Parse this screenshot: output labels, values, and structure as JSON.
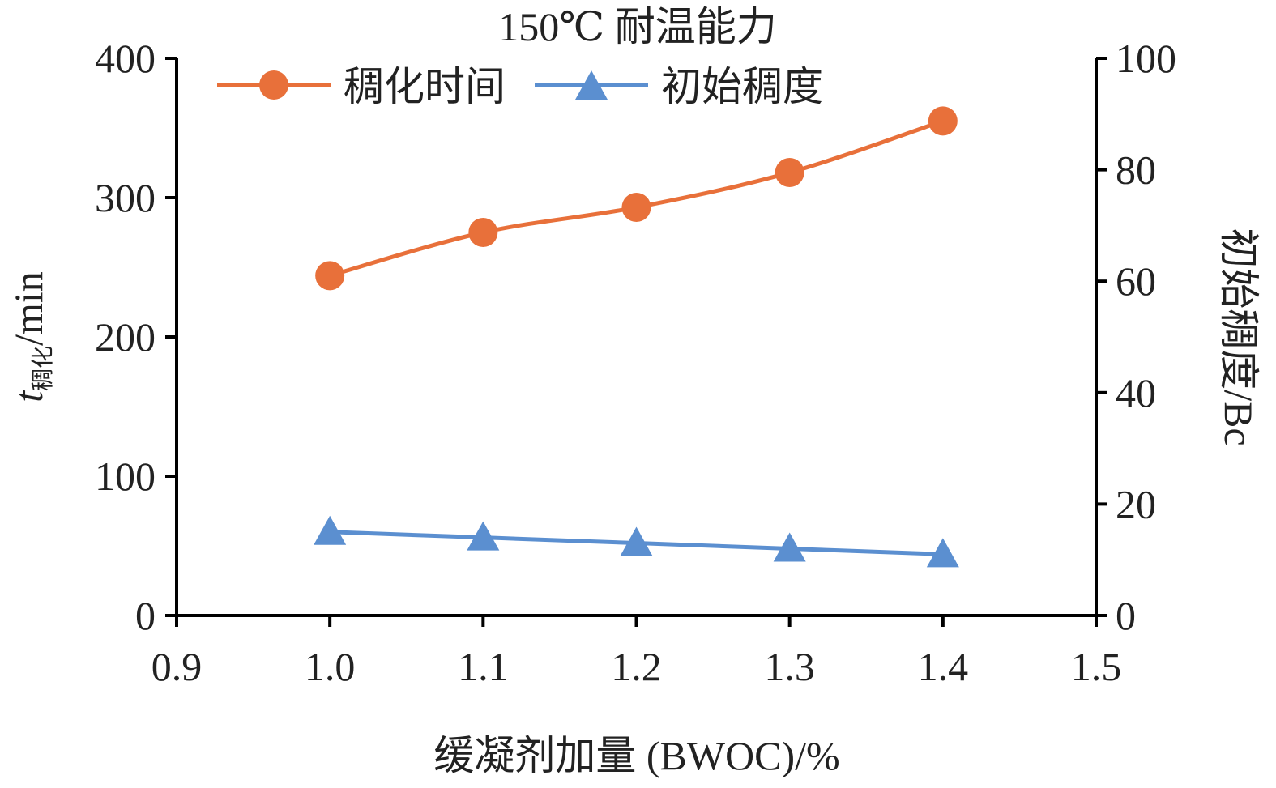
{
  "chart_data": {
    "type": "line",
    "title": "150℃ 耐温能力",
    "xlabel": "缓凝剂加量 (BWOC)/%",
    "ylabel_main": "t",
    "ylabel_sub": "稠化",
    "ylabel_unit": "/min",
    "y2label": "初始稠度/Bc",
    "x": [
      1.0,
      1.1,
      1.2,
      1.3,
      1.4
    ],
    "xlim": [
      0.9,
      1.5
    ],
    "xticks": [
      "0.9",
      "1.0",
      "1.1",
      "1.2",
      "1.3",
      "1.4",
      "1.5"
    ],
    "ylim": [
      0,
      400
    ],
    "yticks": [
      "0",
      "100",
      "200",
      "300",
      "400"
    ],
    "y2lim": [
      0,
      100
    ],
    "y2ticks": [
      "0",
      "20",
      "40",
      "60",
      "80",
      "100"
    ],
    "grid": false,
    "legend_position": "top-left",
    "series": [
      {
        "name": "稠化时间",
        "axis": "left",
        "marker": "circle",
        "color": "#E8703A",
        "values": [
          244,
          275,
          293,
          318,
          355
        ]
      },
      {
        "name": "初始稠度",
        "axis": "right",
        "marker": "triangle",
        "color": "#5B8FD0",
        "values": [
          15,
          14,
          13,
          12,
          11
        ]
      }
    ]
  }
}
